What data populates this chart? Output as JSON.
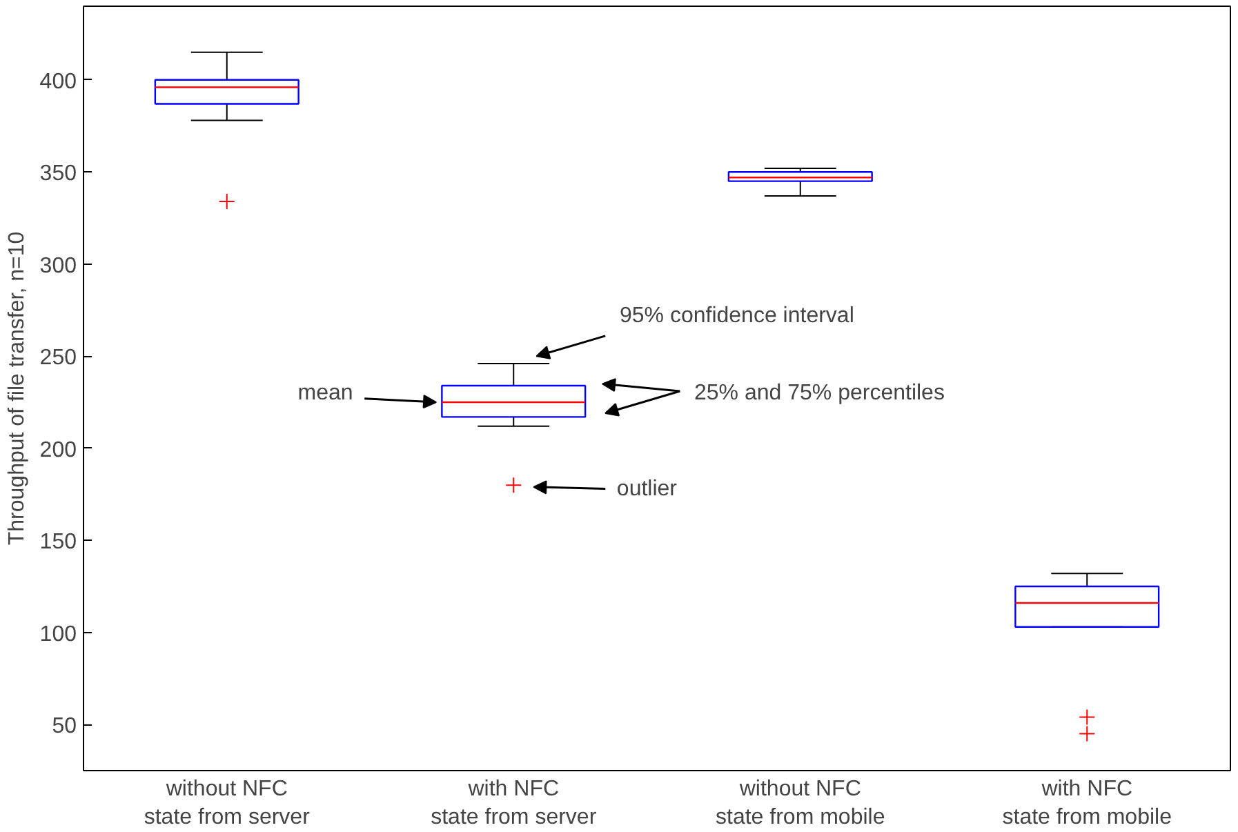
{
  "chart_data": {
    "type": "box",
    "ylabel": "Throughput of file transfer, n=10",
    "categories": [
      "without NFC\nstate from server",
      "with NFC\nstate from server",
      "without NFC\nstate from mobile",
      "with NFC\nstate from mobile"
    ],
    "color": "#0000ff",
    "boxes": [
      {
        "low": 378,
        "q1": 387,
        "median": 396,
        "q3": 400,
        "high": 415,
        "outliers": [
          334
        ]
      },
      {
        "low": 212,
        "q1": 217,
        "median": 225,
        "q3": 234,
        "high": 246,
        "outliers": [
          180
        ]
      },
      {
        "low": 337,
        "q1": 345,
        "median": 347,
        "q3": 350,
        "high": 352
      },
      {
        "low": 103,
        "q1": 103,
        "median": 116,
        "q3": 125,
        "high": 132,
        "outliers": [
          54,
          45
        ]
      }
    ],
    "ylim": [
      25,
      440
    ],
    "yticks": [
      50,
      100,
      150,
      200,
      250,
      300,
      350,
      400
    ],
    "grid": false,
    "marker": "cross",
    "annotations": [
      "95% confidence interval",
      "mean",
      "25% and 75% percentiles",
      "outlier"
    ]
  }
}
